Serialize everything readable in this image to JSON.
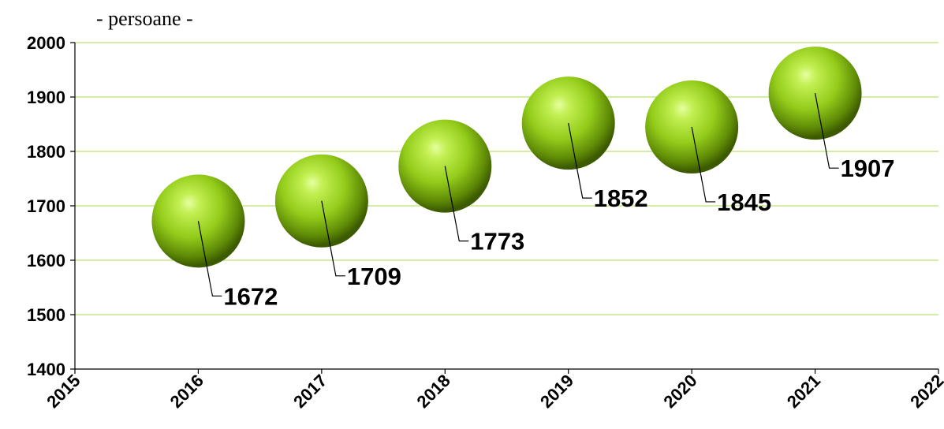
{
  "chart_data": {
    "type": "bubble",
    "unit_label": "- persoane -",
    "title": "",
    "xlabel": "",
    "ylabel": "",
    "xlim": [
      2015,
      2022
    ],
    "ylim": [
      1400,
      2000
    ],
    "x_ticks": [
      2015,
      2016,
      2017,
      2018,
      2019,
      2020,
      2021,
      2022
    ],
    "y_ticks": [
      1400,
      1500,
      1600,
      1700,
      1800,
      1900,
      2000
    ],
    "grid": true,
    "legend": "none",
    "points": [
      {
        "x": 2016,
        "y": 1672,
        "label": "1672"
      },
      {
        "x": 2017,
        "y": 1709,
        "label": "1709"
      },
      {
        "x": 2018,
        "y": 1773,
        "label": "1773"
      },
      {
        "x": 2019,
        "y": 1852,
        "label": "1852"
      },
      {
        "x": 2020,
        "y": 1845,
        "label": "1845"
      },
      {
        "x": 2021,
        "y": 1907,
        "label": "1907"
      }
    ],
    "colors": {
      "bubble_highlight": "#e6ffa0",
      "bubble_mid": "#9ad21e",
      "bubble_dark": "#3c5a00",
      "gridline": "#a8d84a",
      "axis": "#000000"
    }
  }
}
